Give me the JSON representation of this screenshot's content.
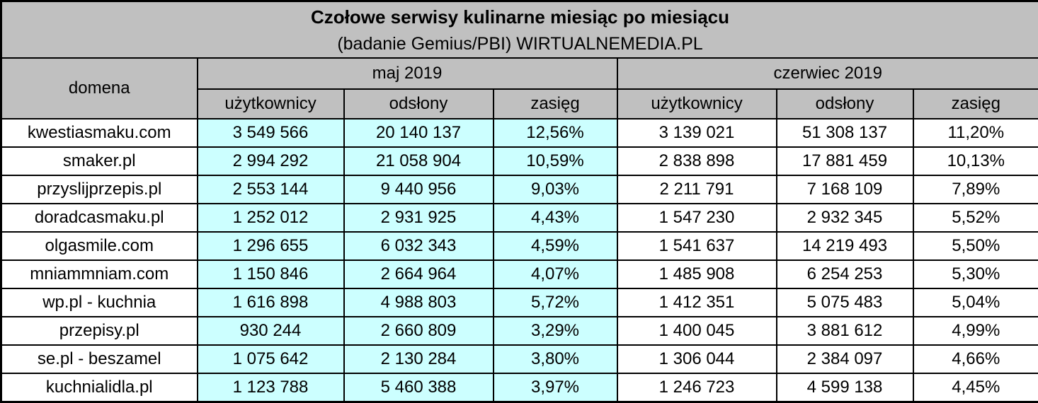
{
  "title": "Czołowe serwisy kulinarne miesiąc po miesiącu",
  "subtitle": "(badanie Gemius/PBI) WIRTUALNEMEDIA.PL",
  "header": {
    "domain_label": "domena",
    "groups": [
      {
        "label": "maj 2019"
      },
      {
        "label": "czerwiec 2019"
      }
    ],
    "metrics": [
      "użytkownicy",
      "odsłony",
      "zasięg"
    ]
  },
  "colors": {
    "header_bg": "#c0c0c0",
    "may_cell_bg": "#ccffff",
    "june_cell_bg": "#ffffff",
    "border": "#000000"
  },
  "chart_data": {
    "type": "table",
    "title": "Czołowe serwisy kulinarne miesiąc po miesiącu",
    "subtitle": "(badanie Gemius/PBI) WIRTUALNEMEDIA.PL",
    "column_groups": [
      "domena",
      "maj 2019",
      "czerwiec 2019"
    ],
    "columns": [
      "domena",
      "maj 2019 — użytkownicy",
      "maj 2019 — odsłony",
      "maj 2019 — zasięg",
      "czerwiec 2019 — użytkownicy",
      "czerwiec 2019 — odsłony",
      "czerwiec 2019 — zasięg"
    ],
    "rows": [
      [
        "kwestiasmaku.com",
        "3 549 566",
        "20 140 137",
        "12,56%",
        "3 139 021",
        "51 308 137",
        "11,20%"
      ],
      [
        "smaker.pl",
        "2 994 292",
        "21 058 904",
        "10,59%",
        "2 838 898",
        "17 881 459",
        "10,13%"
      ],
      [
        "przyslijprzepis.pl",
        "2 553 144",
        "9 440 956",
        "9,03%",
        "2 211 791",
        "7 168 109",
        "7,89%"
      ],
      [
        "doradcasmaku.pl",
        "1 252 012",
        "2 931 925",
        "4,43%",
        "1 547 230",
        "2 932 345",
        "5,52%"
      ],
      [
        "olgasmile.com",
        "1 296 655",
        "6 032 343",
        "4,59%",
        "1 541 637",
        "14 219 493",
        "5,50%"
      ],
      [
        "mniammniam.com",
        "1 150 846",
        "2 664 964",
        "4,07%",
        "1 485 908",
        "6 254 253",
        "5,30%"
      ],
      [
        "wp.pl - kuchnia",
        "1 616 898",
        "4 988 803",
        "5,72%",
        "1 412 351",
        "5 075 483",
        "5,04%"
      ],
      [
        "przepisy.pl",
        "930 244",
        "2 660 809",
        "3,29%",
        "1 400 045",
        "3 881 612",
        "4,99%"
      ],
      [
        "se.pl - beszamel",
        "1 075 642",
        "2 130 284",
        "3,80%",
        "1 306 044",
        "2 384 097",
        "4,66%"
      ],
      [
        "kuchnialidla.pl",
        "1 123 788",
        "5 460 388",
        "3,97%",
        "1 246 723",
        "4 599 138",
        "4,45%"
      ]
    ]
  }
}
